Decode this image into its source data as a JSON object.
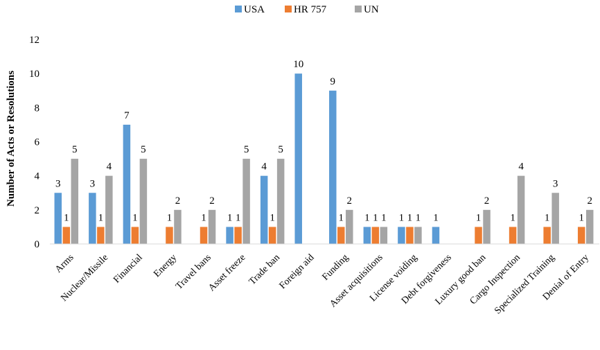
{
  "chart_data": {
    "type": "bar",
    "title": "",
    "xlabel": "",
    "ylabel": "Number of Acts or Resolutions",
    "ylim": [
      0,
      12
    ],
    "yticks": [
      0,
      2,
      4,
      6,
      8,
      10,
      12
    ],
    "legend_position": "top",
    "grid": false,
    "categories": [
      "Arms",
      "Nuclear/Missile",
      "Financial",
      "Energy",
      "Travel bans",
      "Asset freeze",
      "Trade ban",
      "Foreign aid",
      "Funding",
      "Asset acquisitions",
      "License voiding",
      "Debt forgiveness",
      "Luxury good ban",
      "Cargo Inspection",
      "Specialized Training",
      "Denial of Entry"
    ],
    "series": [
      {
        "name": "USA",
        "color": "#5B9BD5",
        "values": [
          3,
          3,
          7,
          null,
          null,
          1,
          4,
          10,
          9,
          1,
          1,
          1,
          null,
          null,
          null,
          null
        ]
      },
      {
        "name": "HR 757",
        "color": "#ED7D31",
        "values": [
          1,
          1,
          1,
          1,
          1,
          1,
          1,
          null,
          1,
          1,
          1,
          null,
          1,
          1,
          1,
          1
        ]
      },
      {
        "name": "UN",
        "color": "#A5A5A5",
        "values": [
          5,
          4,
          5,
          2,
          2,
          5,
          5,
          null,
          2,
          1,
          1,
          null,
          2,
          4,
          3,
          2
        ]
      }
    ]
  }
}
